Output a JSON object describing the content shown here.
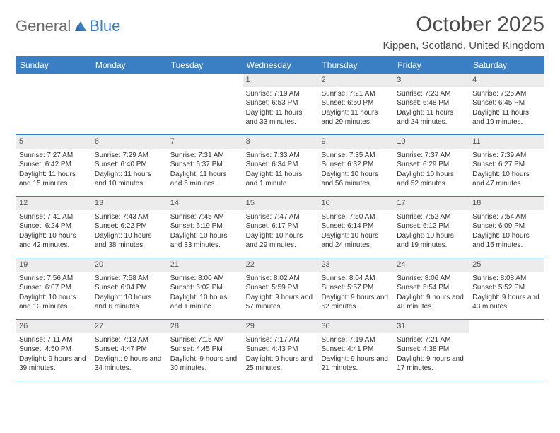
{
  "brand": {
    "word1": "General",
    "word2": "Blue"
  },
  "title": "October 2025",
  "location": "Kippen, Scotland, United Kingdom",
  "colors": {
    "header_bg": "#3a7fc4",
    "header_text": "#ffffff",
    "daynum_bg": "#ececec",
    "divider": "#3a7fc4",
    "text": "#333333",
    "logo_gray": "#6b6b6b",
    "logo_blue": "#3a7fc4"
  },
  "weekdays": [
    "Sunday",
    "Monday",
    "Tuesday",
    "Wednesday",
    "Thursday",
    "Friday",
    "Saturday"
  ],
  "weeks": [
    [
      null,
      null,
      null,
      {
        "n": "1",
        "sunrise": "Sunrise: 7:19 AM",
        "sunset": "Sunset: 6:53 PM",
        "daylight": "Daylight: 11 hours and 33 minutes."
      },
      {
        "n": "2",
        "sunrise": "Sunrise: 7:21 AM",
        "sunset": "Sunset: 6:50 PM",
        "daylight": "Daylight: 11 hours and 29 minutes."
      },
      {
        "n": "3",
        "sunrise": "Sunrise: 7:23 AM",
        "sunset": "Sunset: 6:48 PM",
        "daylight": "Daylight: 11 hours and 24 minutes."
      },
      {
        "n": "4",
        "sunrise": "Sunrise: 7:25 AM",
        "sunset": "Sunset: 6:45 PM",
        "daylight": "Daylight: 11 hours and 19 minutes."
      }
    ],
    [
      {
        "n": "5",
        "sunrise": "Sunrise: 7:27 AM",
        "sunset": "Sunset: 6:42 PM",
        "daylight": "Daylight: 11 hours and 15 minutes."
      },
      {
        "n": "6",
        "sunrise": "Sunrise: 7:29 AM",
        "sunset": "Sunset: 6:40 PM",
        "daylight": "Daylight: 11 hours and 10 minutes."
      },
      {
        "n": "7",
        "sunrise": "Sunrise: 7:31 AM",
        "sunset": "Sunset: 6:37 PM",
        "daylight": "Daylight: 11 hours and 5 minutes."
      },
      {
        "n": "8",
        "sunrise": "Sunrise: 7:33 AM",
        "sunset": "Sunset: 6:34 PM",
        "daylight": "Daylight: 11 hours and 1 minute."
      },
      {
        "n": "9",
        "sunrise": "Sunrise: 7:35 AM",
        "sunset": "Sunset: 6:32 PM",
        "daylight": "Daylight: 10 hours and 56 minutes."
      },
      {
        "n": "10",
        "sunrise": "Sunrise: 7:37 AM",
        "sunset": "Sunset: 6:29 PM",
        "daylight": "Daylight: 10 hours and 52 minutes."
      },
      {
        "n": "11",
        "sunrise": "Sunrise: 7:39 AM",
        "sunset": "Sunset: 6:27 PM",
        "daylight": "Daylight: 10 hours and 47 minutes."
      }
    ],
    [
      {
        "n": "12",
        "sunrise": "Sunrise: 7:41 AM",
        "sunset": "Sunset: 6:24 PM",
        "daylight": "Daylight: 10 hours and 42 minutes."
      },
      {
        "n": "13",
        "sunrise": "Sunrise: 7:43 AM",
        "sunset": "Sunset: 6:22 PM",
        "daylight": "Daylight: 10 hours and 38 minutes."
      },
      {
        "n": "14",
        "sunrise": "Sunrise: 7:45 AM",
        "sunset": "Sunset: 6:19 PM",
        "daylight": "Daylight: 10 hours and 33 minutes."
      },
      {
        "n": "15",
        "sunrise": "Sunrise: 7:47 AM",
        "sunset": "Sunset: 6:17 PM",
        "daylight": "Daylight: 10 hours and 29 minutes."
      },
      {
        "n": "16",
        "sunrise": "Sunrise: 7:50 AM",
        "sunset": "Sunset: 6:14 PM",
        "daylight": "Daylight: 10 hours and 24 minutes."
      },
      {
        "n": "17",
        "sunrise": "Sunrise: 7:52 AM",
        "sunset": "Sunset: 6:12 PM",
        "daylight": "Daylight: 10 hours and 19 minutes."
      },
      {
        "n": "18",
        "sunrise": "Sunrise: 7:54 AM",
        "sunset": "Sunset: 6:09 PM",
        "daylight": "Daylight: 10 hours and 15 minutes."
      }
    ],
    [
      {
        "n": "19",
        "sunrise": "Sunrise: 7:56 AM",
        "sunset": "Sunset: 6:07 PM",
        "daylight": "Daylight: 10 hours and 10 minutes."
      },
      {
        "n": "20",
        "sunrise": "Sunrise: 7:58 AM",
        "sunset": "Sunset: 6:04 PM",
        "daylight": "Daylight: 10 hours and 6 minutes."
      },
      {
        "n": "21",
        "sunrise": "Sunrise: 8:00 AM",
        "sunset": "Sunset: 6:02 PM",
        "daylight": "Daylight: 10 hours and 1 minute."
      },
      {
        "n": "22",
        "sunrise": "Sunrise: 8:02 AM",
        "sunset": "Sunset: 5:59 PM",
        "daylight": "Daylight: 9 hours and 57 minutes."
      },
      {
        "n": "23",
        "sunrise": "Sunrise: 8:04 AM",
        "sunset": "Sunset: 5:57 PM",
        "daylight": "Daylight: 9 hours and 52 minutes."
      },
      {
        "n": "24",
        "sunrise": "Sunrise: 8:06 AM",
        "sunset": "Sunset: 5:54 PM",
        "daylight": "Daylight: 9 hours and 48 minutes."
      },
      {
        "n": "25",
        "sunrise": "Sunrise: 8:08 AM",
        "sunset": "Sunset: 5:52 PM",
        "daylight": "Daylight: 9 hours and 43 minutes."
      }
    ],
    [
      {
        "n": "26",
        "sunrise": "Sunrise: 7:11 AM",
        "sunset": "Sunset: 4:50 PM",
        "daylight": "Daylight: 9 hours and 39 minutes."
      },
      {
        "n": "27",
        "sunrise": "Sunrise: 7:13 AM",
        "sunset": "Sunset: 4:47 PM",
        "daylight": "Daylight: 9 hours and 34 minutes."
      },
      {
        "n": "28",
        "sunrise": "Sunrise: 7:15 AM",
        "sunset": "Sunset: 4:45 PM",
        "daylight": "Daylight: 9 hours and 30 minutes."
      },
      {
        "n": "29",
        "sunrise": "Sunrise: 7:17 AM",
        "sunset": "Sunset: 4:43 PM",
        "daylight": "Daylight: 9 hours and 25 minutes."
      },
      {
        "n": "30",
        "sunrise": "Sunrise: 7:19 AM",
        "sunset": "Sunset: 4:41 PM",
        "daylight": "Daylight: 9 hours and 21 minutes."
      },
      {
        "n": "31",
        "sunrise": "Sunrise: 7:21 AM",
        "sunset": "Sunset: 4:38 PM",
        "daylight": "Daylight: 9 hours and 17 minutes."
      },
      null
    ]
  ]
}
